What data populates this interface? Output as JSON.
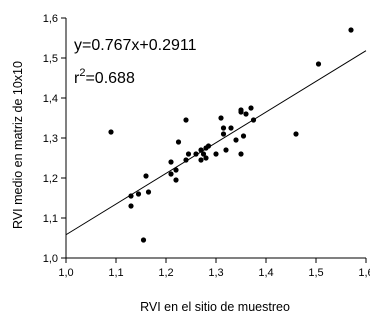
{
  "chart_data": {
    "type": "scatter",
    "xlabel": "RVI en el sitio de muestreo",
    "ylabel": "RVI medio en matriz de 10x10",
    "xlim": [
      1.0,
      1.6
    ],
    "ylim": [
      1.0,
      1.6
    ],
    "x_ticks": [
      "1,0",
      "1,1",
      "1,2",
      "1,3",
      "1,4",
      "1,5",
      "1,6"
    ],
    "y_ticks": [
      "1,0",
      "1,1",
      "1,2",
      "1,3",
      "1,4",
      "1,5",
      "1,6"
    ],
    "grid": false,
    "annotations": {
      "equation": "y=0.767x+0.2911",
      "r2_base": "r",
      "r2_sup": "2",
      "r2_rest": "=0.688"
    },
    "fit": {
      "slope": 0.767,
      "intercept": 0.2911
    },
    "points": [
      [
        1.09,
        1.315
      ],
      [
        1.13,
        1.13
      ],
      [
        1.13,
        1.155
      ],
      [
        1.145,
        1.16
      ],
      [
        1.155,
        1.045
      ],
      [
        1.16,
        1.205
      ],
      [
        1.165,
        1.165
      ],
      [
        1.21,
        1.21
      ],
      [
        1.21,
        1.24
      ],
      [
        1.22,
        1.22
      ],
      [
        1.22,
        1.195
      ],
      [
        1.225,
        1.29
      ],
      [
        1.24,
        1.345
      ],
      [
        1.24,
        1.245
      ],
      [
        1.245,
        1.26
      ],
      [
        1.26,
        1.26
      ],
      [
        1.27,
        1.245
      ],
      [
        1.27,
        1.27
      ],
      [
        1.275,
        1.26
      ],
      [
        1.28,
        1.275
      ],
      [
        1.28,
        1.25
      ],
      [
        1.285,
        1.28
      ],
      [
        1.3,
        1.26
      ],
      [
        1.31,
        1.35
      ],
      [
        1.315,
        1.325
      ],
      [
        1.315,
        1.31
      ],
      [
        1.32,
        1.27
      ],
      [
        1.33,
        1.325
      ],
      [
        1.34,
        1.295
      ],
      [
        1.35,
        1.365
      ],
      [
        1.35,
        1.37
      ],
      [
        1.35,
        1.26
      ],
      [
        1.355,
        1.305
      ],
      [
        1.36,
        1.36
      ],
      [
        1.37,
        1.375
      ],
      [
        1.375,
        1.345
      ],
      [
        1.46,
        1.31
      ],
      [
        1.505,
        1.485
      ],
      [
        1.57,
        1.57
      ]
    ]
  }
}
